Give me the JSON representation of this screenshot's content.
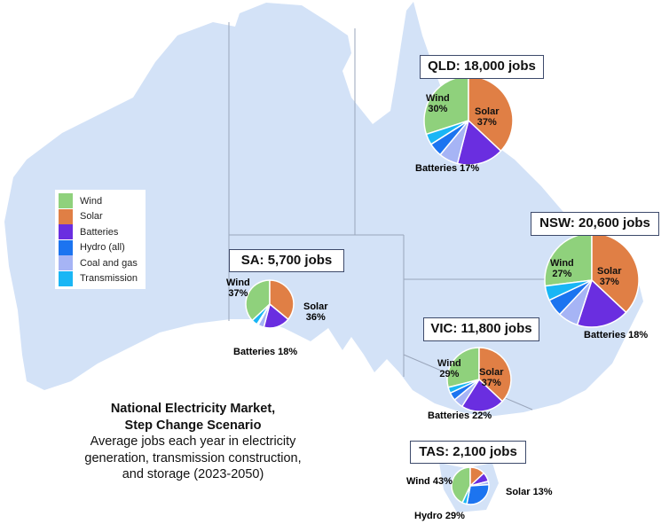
{
  "legend": [
    {
      "name": "Wind",
      "color": "#8fd17c"
    },
    {
      "name": "Solar",
      "color": "#e07f45"
    },
    {
      "name": "Batteries",
      "color": "#6a2ee0"
    },
    {
      "name": "Hydro (all)",
      "color": "#1c74f0"
    },
    {
      "name": "Coal and gas",
      "color": "#a6b4f5"
    },
    {
      "name": "Transmission",
      "color": "#19b6f5"
    }
  ],
  "map": {
    "land_color": "#d3e2f7",
    "border_color": "#9aa6bb"
  },
  "title": {
    "line1": "National Electricity Market,",
    "line2": "Step Change Scenario",
    "line3": "Average jobs each year in electricity",
    "line4": "generation, transmission construction,",
    "line5": "and storage (2023-2050)"
  },
  "chart_data": {
    "type": "pie",
    "series_order": [
      "Wind",
      "Solar",
      "Batteries",
      "Coal and gas",
      "Hydro (all)",
      "Transmission"
    ],
    "regions": [
      {
        "id": "qld",
        "heading": "QLD: 18,000 jobs",
        "jobs": 18000,
        "values": {
          "Wind": 30,
          "Solar": 37,
          "Batteries": 17,
          "Coal and gas": 7,
          "Hydro (all)": 5,
          "Transmission": 4
        },
        "labels": [
          [
            "Wind",
            "30%"
          ],
          [
            "Solar",
            "37%"
          ],
          [
            "Batteries 17%"
          ]
        ]
      },
      {
        "id": "nsw",
        "heading": "NSW: 20,600 jobs",
        "jobs": 20600,
        "values": {
          "Wind": 27,
          "Solar": 37,
          "Batteries": 18,
          "Coal and gas": 7,
          "Hydro (all)": 6,
          "Transmission": 5
        },
        "labels": [
          [
            "Wind",
            "27%"
          ],
          [
            "Solar",
            "37%"
          ],
          [
            "Batteries 18%"
          ]
        ]
      },
      {
        "id": "sa",
        "heading": "SA: 5,700 jobs",
        "jobs": 5700,
        "values": {
          "Wind": 37,
          "Solar": 36,
          "Batteries": 18,
          "Coal and gas": 4,
          "Hydro (all)": 1,
          "Transmission": 4
        },
        "labels": [
          [
            "Wind",
            "37%"
          ],
          [
            "Solar",
            "36%"
          ],
          [
            "Batteries 18%"
          ]
        ]
      },
      {
        "id": "vic",
        "heading": "VIC: 11,800 jobs",
        "jobs": 11800,
        "values": {
          "Wind": 29,
          "Solar": 37,
          "Batteries": 22,
          "Coal and gas": 5,
          "Hydro (all)": 4,
          "Transmission": 3
        },
        "labels": [
          [
            "Wind",
            "29%"
          ],
          [
            "Solar",
            "37%"
          ],
          [
            "Batteries 22%"
          ]
        ]
      },
      {
        "id": "tas",
        "heading": "TAS: 2,100 jobs",
        "jobs": 2100,
        "values": {
          "Wind": 43,
          "Solar": 13,
          "Batteries": 8,
          "Coal and gas": 3,
          "Hydro (all)": 29,
          "Transmission": 4
        },
        "labels": [
          [
            "Wind 43%"
          ],
          [
            "Solar 13%"
          ],
          [
            "Hydro 29%"
          ]
        ]
      }
    ]
  }
}
